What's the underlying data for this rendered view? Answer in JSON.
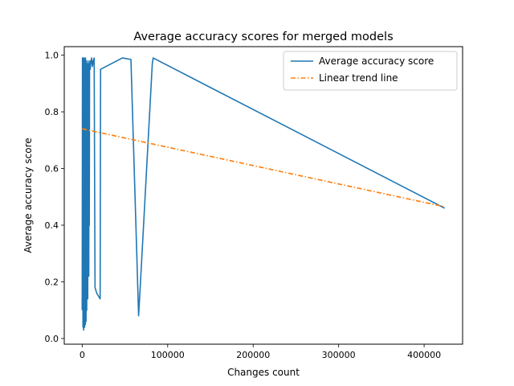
{
  "chart_data": {
    "type": "line",
    "title": "Average accuracy scores for merged models",
    "xlabel": "Changes count",
    "ylabel": "Average accuracy score",
    "xlim": [
      -21000,
      445000
    ],
    "ylim": [
      -0.02,
      1.03
    ],
    "xticks": [
      0,
      100000,
      200000,
      300000,
      400000
    ],
    "xtick_labels": [
      "0",
      "100000",
      "200000",
      "300000",
      "400000"
    ],
    "yticks": [
      0.0,
      0.2,
      0.4,
      0.6,
      0.8,
      1.0
    ],
    "ytick_labels": [
      "0.0",
      "0.2",
      "0.4",
      "0.6",
      "0.8",
      "1.0"
    ],
    "grid": false,
    "legend_position": "upper right",
    "series": [
      {
        "name": "Average accuracy score",
        "color": "#1f77b4",
        "style": "solid",
        "x": [
          0,
          300,
          500,
          700,
          900,
          1100,
          1300,
          1500,
          1700,
          1900,
          2100,
          2300,
          2500,
          2700,
          2900,
          3100,
          3300,
          3500,
          3700,
          3900,
          4100,
          4300,
          4500,
          4700,
          4900,
          5100,
          5300,
          5600,
          5900,
          6200,
          6500,
          6800,
          7100,
          7400,
          7700,
          8000,
          8300,
          8600,
          9000,
          9400,
          10000,
          11000,
          12000,
          13000,
          14000,
          15000,
          17000,
          21000,
          21500,
          47000,
          57000,
          66000,
          70000,
          82000,
          83000,
          424000
        ],
        "y": [
          0.1,
          0.99,
          0.12,
          0.95,
          0.04,
          0.9,
          0.05,
          0.99,
          0.03,
          0.97,
          0.1,
          0.99,
          0.06,
          0.96,
          0.04,
          0.98,
          0.12,
          0.92,
          0.05,
          0.99,
          0.08,
          0.95,
          0.06,
          0.98,
          0.15,
          0.93,
          0.1,
          0.97,
          0.2,
          0.96,
          0.14,
          0.98,
          0.3,
          0.95,
          0.22,
          0.97,
          0.4,
          0.96,
          0.98,
          0.95,
          0.97,
          0.99,
          0.96,
          0.98,
          0.99,
          0.18,
          0.16,
          0.14,
          0.95,
          0.99,
          0.985,
          0.08,
          0.3,
          0.97,
          0.99,
          0.46
        ]
      },
      {
        "name": "Linear trend line",
        "color": "#ff7f0e",
        "style": "dashdot",
        "x": [
          0,
          424000
        ],
        "y": [
          0.74,
          0.465
        ]
      }
    ]
  }
}
